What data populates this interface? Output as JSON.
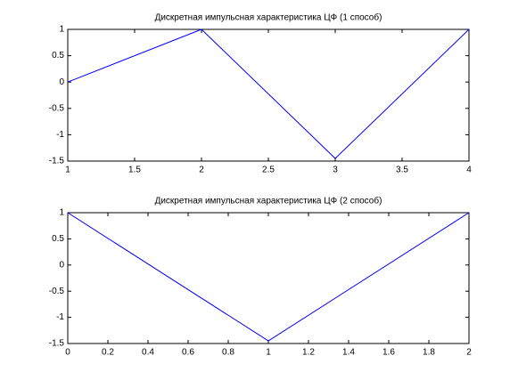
{
  "chart_data": [
    {
      "type": "line",
      "title": "Дискретная импульсная характеристика ЦФ (1 способ)",
      "x": [
        1,
        2,
        3,
        4
      ],
      "series": [
        {
          "color": "#0000ff",
          "values": [
            0,
            1,
            -1.45,
            1
          ]
        }
      ],
      "xlim": [
        1,
        4
      ],
      "xticks": [
        1,
        1.5,
        2,
        2.5,
        3,
        3.5,
        4
      ],
      "ylim": [
        -1.5,
        1
      ],
      "yticks": [
        -1.5,
        -1,
        -0.5,
        0,
        0.5,
        1
      ],
      "grid": false
    },
    {
      "type": "line",
      "title": "Дискретная импульсная характеристика ЦФ (2 способ)",
      "x": [
        0,
        1,
        2
      ],
      "series": [
        {
          "color": "#0000ff",
          "values": [
            1,
            -1.45,
            1
          ]
        }
      ],
      "xlim": [
        0,
        2
      ],
      "xticks": [
        0,
        0.2,
        0.4,
        0.6,
        0.8,
        1,
        1.2,
        1.4,
        1.6,
        1.8,
        2
      ],
      "ylim": [
        -1.5,
        1
      ],
      "yticks": [
        -1.5,
        -1,
        -0.5,
        0,
        0.5,
        1
      ],
      "grid": false
    }
  ]
}
